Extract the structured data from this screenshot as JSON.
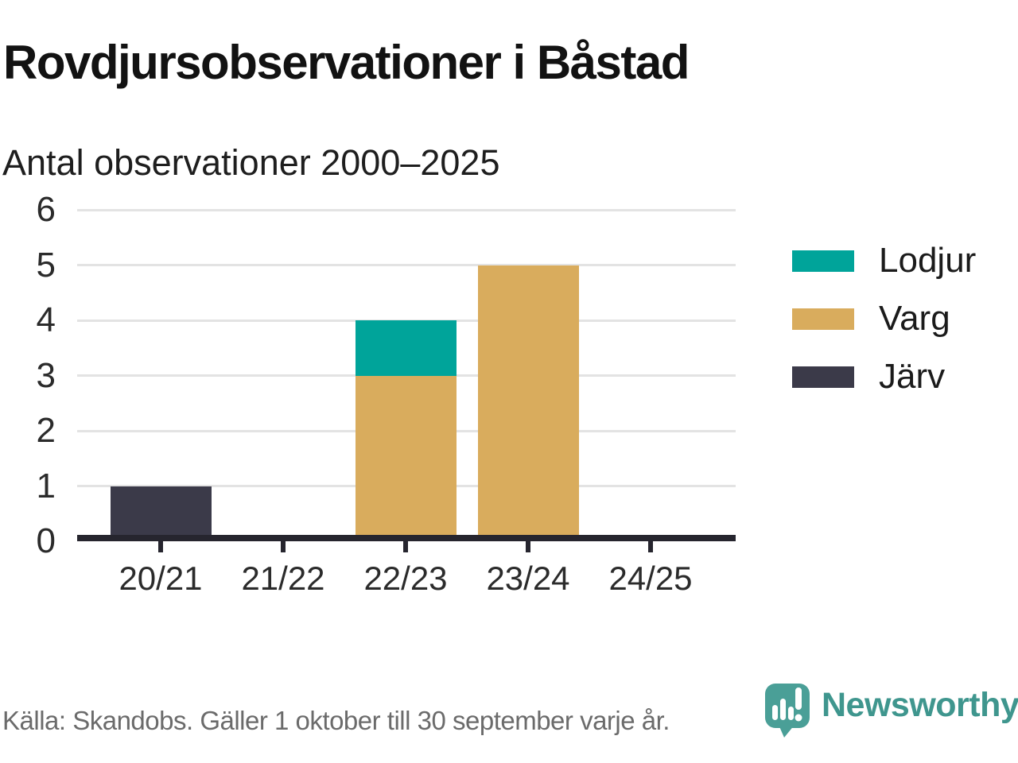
{
  "header": {
    "title": "Rovdjursobservationer i Båstad",
    "subtitle": "Antal observationer 2000–2025"
  },
  "chart_data": {
    "type": "bar",
    "stacked": true,
    "title": "Rovdjursobservationer i Båstad",
    "subtitle": "Antal observationer 2000–2025",
    "categories": [
      "20/21",
      "21/22",
      "22/23",
      "23/24",
      "24/25"
    ],
    "series": [
      {
        "name": "Järv",
        "color": "#3B3A49",
        "values": [
          1,
          0,
          0,
          0,
          0
        ]
      },
      {
        "name": "Varg",
        "color": "#D9AC5D",
        "values": [
          0,
          0,
          3,
          5,
          0
        ]
      },
      {
        "name": "Lodjur",
        "color": "#00A49A",
        "values": [
          0,
          0,
          1,
          0,
          0
        ]
      }
    ],
    "legend": [
      {
        "label": "Lodjur",
        "color": "#00A49A"
      },
      {
        "label": "Varg",
        "color": "#D9AC5D"
      },
      {
        "label": "Järv",
        "color": "#3B3A49"
      }
    ],
    "xlabel": "",
    "ylabel": "",
    "ylim": [
      0,
      6
    ],
    "yticks": [
      0,
      1,
      2,
      3,
      4,
      5,
      6
    ],
    "grid": true,
    "legend_position": "right"
  },
  "footer": {
    "source": "Källa: Skandobs. Gäller 1 oktober till 30 september varje år.",
    "brand": "Newsworthy"
  },
  "colors": {
    "axis": "#26252E",
    "gridline": "#E3E3E3",
    "tick_label": "#2B2B2B",
    "footer_text": "#6B6B6B",
    "brand_text": "#3F968E",
    "brand_icon": "#4A9F97"
  }
}
